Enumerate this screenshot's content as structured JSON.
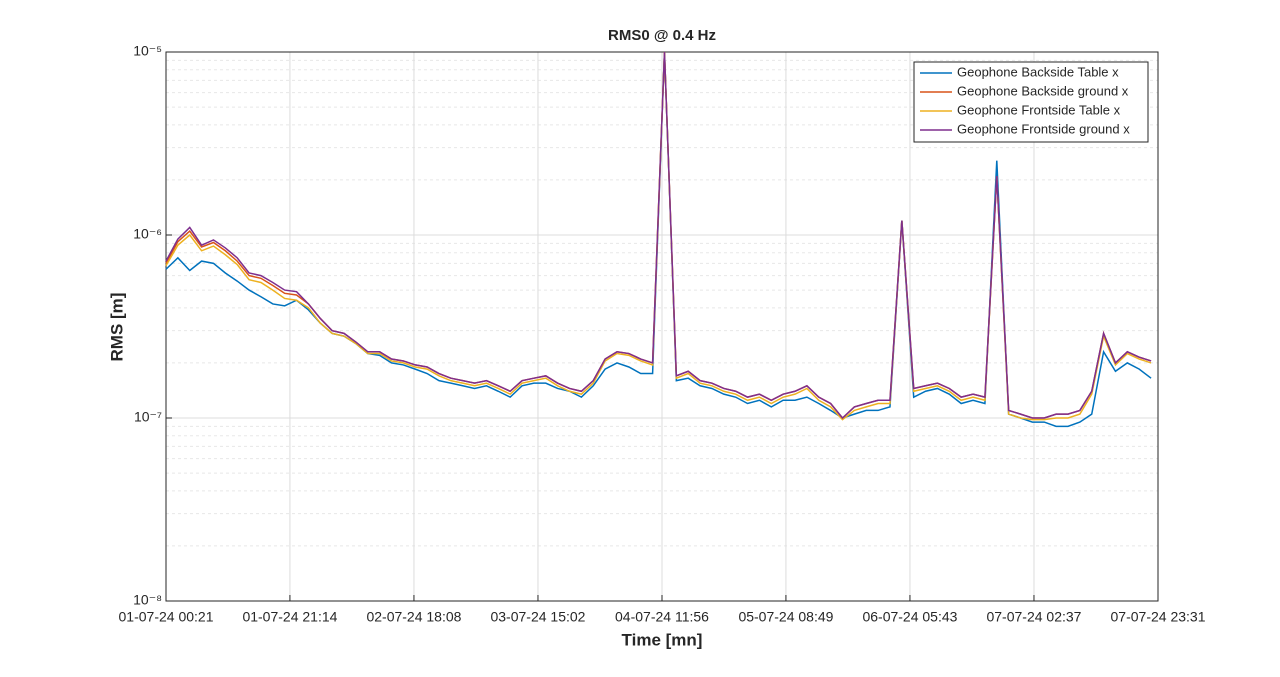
{
  "chart_data": {
    "type": "line",
    "title": "RMS0 @ 0.4 Hz",
    "x_label": "Time [mn]",
    "y_label": "RMS [m]",
    "log_y": true,
    "grid": true,
    "legend_position": "top-right",
    "xlim": [
      0,
      167.167
    ],
    "xticks": [
      {
        "value": 0,
        "label": "01-07-24 00:21"
      },
      {
        "value": 20.883,
        "label": "01-07-24 21:14"
      },
      {
        "value": 41.783,
        "label": "02-07-24 18:08"
      },
      {
        "value": 62.683,
        "label": "03-07-24 15:02"
      },
      {
        "value": 83.583,
        "label": "04-07-24 11:56"
      },
      {
        "value": 104.467,
        "label": "05-07-24 08:49"
      },
      {
        "value": 125.367,
        "label": "06-07-24 05:43"
      },
      {
        "value": 146.267,
        "label": "07-07-24 02:37"
      },
      {
        "value": 167.167,
        "label": "07-07-24 23:31"
      }
    ],
    "ylim": [
      1e-08,
      1e-05
    ],
    "yticks": [
      {
        "value": 1e-08,
        "label": "10⁻⁸"
      },
      {
        "value": 1e-07,
        "label": "10⁻⁷"
      },
      {
        "value": 1e-06,
        "label": "10⁻⁶"
      },
      {
        "value": 1e-05,
        "label": "10⁻⁵"
      }
    ],
    "x": [
      0,
      2,
      4,
      6,
      8,
      10,
      12,
      14,
      16,
      18,
      20,
      22,
      24,
      26,
      28,
      30,
      32,
      34,
      36,
      38,
      40,
      42,
      44,
      46,
      48,
      50,
      52,
      54,
      56,
      58,
      60,
      62,
      64,
      66,
      68,
      70,
      72,
      74,
      76,
      78,
      80,
      82,
      84,
      86,
      88,
      90,
      92,
      94,
      96,
      98,
      100,
      102,
      104,
      106,
      108,
      110,
      112,
      114,
      116,
      118,
      120,
      122,
      124,
      126,
      128,
      130,
      132,
      134,
      136,
      138,
      140,
      142,
      144,
      146,
      148,
      150,
      152,
      154,
      156,
      158,
      160,
      162,
      164,
      166
    ],
    "series": [
      {
        "name": "Geophone Backside Table x",
        "color": "#0072BD",
        "values": [
          6.5e-07,
          7.5e-07,
          6.4e-07,
          7.2e-07,
          7e-07,
          6.2e-07,
          5.6e-07,
          5e-07,
          4.6e-07,
          4.2e-07,
          4.1e-07,
          4.4e-07,
          3.9e-07,
          3.3e-07,
          2.9e-07,
          2.8e-07,
          2.55e-07,
          2.25e-07,
          2.2e-07,
          2e-07,
          1.95e-07,
          1.85e-07,
          1.75e-07,
          1.6e-07,
          1.55e-07,
          1.5e-07,
          1.45e-07,
          1.5e-07,
          1.4e-07,
          1.3e-07,
          1.5e-07,
          1.55e-07,
          1.55e-07,
          1.45e-07,
          1.4e-07,
          1.3e-07,
          1.5e-07,
          1.85e-07,
          2e-07,
          1.9e-07,
          1.75e-07,
          1.75e-07,
          1e-05,
          1.6e-07,
          1.65e-07,
          1.5e-07,
          1.45e-07,
          1.35e-07,
          1.3e-07,
          1.2e-07,
          1.25e-07,
          1.15e-07,
          1.25e-07,
          1.25e-07,
          1.3e-07,
          1.2e-07,
          1.1e-07,
          1e-07,
          1.05e-07,
          1.1e-07,
          1.1e-07,
          1.15e-07,
          1.2e-06,
          1.3e-07,
          1.4e-07,
          1.45e-07,
          1.35e-07,
          1.2e-07,
          1.25e-07,
          1.2e-07,
          2.55e-06,
          1.05e-07,
          1e-07,
          9.5e-08,
          9.5e-08,
          9e-08,
          9e-08,
          9.5e-08,
          1.05e-07,
          2.3e-07,
          1.8e-07,
          2e-07,
          1.85e-07,
          1.65e-07
        ]
      },
      {
        "name": "Geophone Backside ground x",
        "color": "#D95319",
        "values": [
          7e-07,
          9.2e-07,
          1.05e-06,
          8.6e-07,
          9.1e-07,
          8.2e-07,
          7.2e-07,
          6e-07,
          5.8e-07,
          5.3e-07,
          4.8e-07,
          4.7e-07,
          4.2e-07,
          3.5e-07,
          3e-07,
          2.9e-07,
          2.6e-07,
          2.3e-07,
          2.3e-07,
          2.1e-07,
          2.05e-07,
          1.95e-07,
          1.9e-07,
          1.75e-07,
          1.65e-07,
          1.6e-07,
          1.55e-07,
          1.6e-07,
          1.5e-07,
          1.4e-07,
          1.6e-07,
          1.65e-07,
          1.7e-07,
          1.55e-07,
          1.45e-07,
          1.4e-07,
          1.6e-07,
          2.1e-07,
          2.3e-07,
          2.25e-07,
          2.1e-07,
          2e-07,
          1e-05,
          1.7e-07,
          1.8e-07,
          1.6e-07,
          1.55e-07,
          1.45e-07,
          1.4e-07,
          1.3e-07,
          1.35e-07,
          1.25e-07,
          1.35e-07,
          1.4e-07,
          1.5e-07,
          1.3e-07,
          1.2e-07,
          1e-07,
          1.15e-07,
          1.2e-07,
          1.25e-07,
          1.25e-07,
          1.2e-06,
          1.45e-07,
          1.5e-07,
          1.55e-07,
          1.45e-07,
          1.3e-07,
          1.35e-07,
          1.3e-07,
          2.1e-06,
          1.1e-07,
          1.05e-07,
          1e-07,
          1e-07,
          1.05e-07,
          1.05e-07,
          1.1e-07,
          1.4e-07,
          2.9e-07,
          2e-07,
          2.3e-07,
          2.15e-07,
          2.05e-07
        ]
      },
      {
        "name": "Geophone Frontside Table x",
        "color": "#EDB120",
        "values": [
          6.8e-07,
          8.8e-07,
          1e-06,
          8.2e-07,
          8.7e-07,
          7.8e-07,
          6.9e-07,
          5.7e-07,
          5.5e-07,
          5e-07,
          4.5e-07,
          4.4e-07,
          4e-07,
          3.3e-07,
          2.9e-07,
          2.8e-07,
          2.55e-07,
          2.25e-07,
          2.25e-07,
          2.05e-07,
          2e-07,
          1.9e-07,
          1.85e-07,
          1.7e-07,
          1.6e-07,
          1.55e-07,
          1.5e-07,
          1.55e-07,
          1.45e-07,
          1.35e-07,
          1.55e-07,
          1.6e-07,
          1.65e-07,
          1.5e-07,
          1.4e-07,
          1.35e-07,
          1.55e-07,
          2.05e-07,
          2.25e-07,
          2.2e-07,
          2.05e-07,
          1.95e-07,
          1e-05,
          1.65e-07,
          1.75e-07,
          1.55e-07,
          1.5e-07,
          1.4e-07,
          1.35e-07,
          1.25e-07,
          1.3e-07,
          1.2e-07,
          1.3e-07,
          1.35e-07,
          1.45e-07,
          1.25e-07,
          1.15e-07,
          9.8e-08,
          1.1e-07,
          1.15e-07,
          1.2e-07,
          1.2e-07,
          1.2e-06,
          1.4e-07,
          1.45e-07,
          1.5e-07,
          1.4e-07,
          1.25e-07,
          1.3e-07,
          1.25e-07,
          2.1e-06,
          1.05e-07,
          1e-07,
          9.8e-08,
          9.8e-08,
          1e-07,
          1e-07,
          1.05e-07,
          1.35e-07,
          2.8e-07,
          1.95e-07,
          2.25e-07,
          2.1e-07,
          2e-07
        ]
      },
      {
        "name": "Geophone Frontside ground x",
        "color": "#7E2F8E",
        "values": [
          7.2e-07,
          9.5e-07,
          1.1e-06,
          8.8e-07,
          9.4e-07,
          8.5e-07,
          7.5e-07,
          6.2e-07,
          6e-07,
          5.5e-07,
          5e-07,
          4.9e-07,
          4.2e-07,
          3.5e-07,
          3e-07,
          2.9e-07,
          2.6e-07,
          2.3e-07,
          2.3e-07,
          2.1e-07,
          2.05e-07,
          1.95e-07,
          1.9e-07,
          1.75e-07,
          1.65e-07,
          1.6e-07,
          1.55e-07,
          1.6e-07,
          1.5e-07,
          1.4e-07,
          1.6e-07,
          1.65e-07,
          1.7e-07,
          1.55e-07,
          1.45e-07,
          1.4e-07,
          1.6e-07,
          2.1e-07,
          2.3e-07,
          2.25e-07,
          2.1e-07,
          2e-07,
          1e-05,
          1.7e-07,
          1.8e-07,
          1.6e-07,
          1.55e-07,
          1.45e-07,
          1.4e-07,
          1.3e-07,
          1.35e-07,
          1.25e-07,
          1.35e-07,
          1.4e-07,
          1.5e-07,
          1.3e-07,
          1.2e-07,
          1e-07,
          1.15e-07,
          1.2e-07,
          1.25e-07,
          1.25e-07,
          1.2e-06,
          1.45e-07,
          1.5e-07,
          1.55e-07,
          1.45e-07,
          1.3e-07,
          1.35e-07,
          1.3e-07,
          2.1e-06,
          1.1e-07,
          1.05e-07,
          1e-07,
          1e-07,
          1.05e-07,
          1.05e-07,
          1.1e-07,
          1.4e-07,
          2.9e-07,
          2e-07,
          2.3e-07,
          2.15e-07,
          2.05e-07
        ]
      }
    ]
  }
}
